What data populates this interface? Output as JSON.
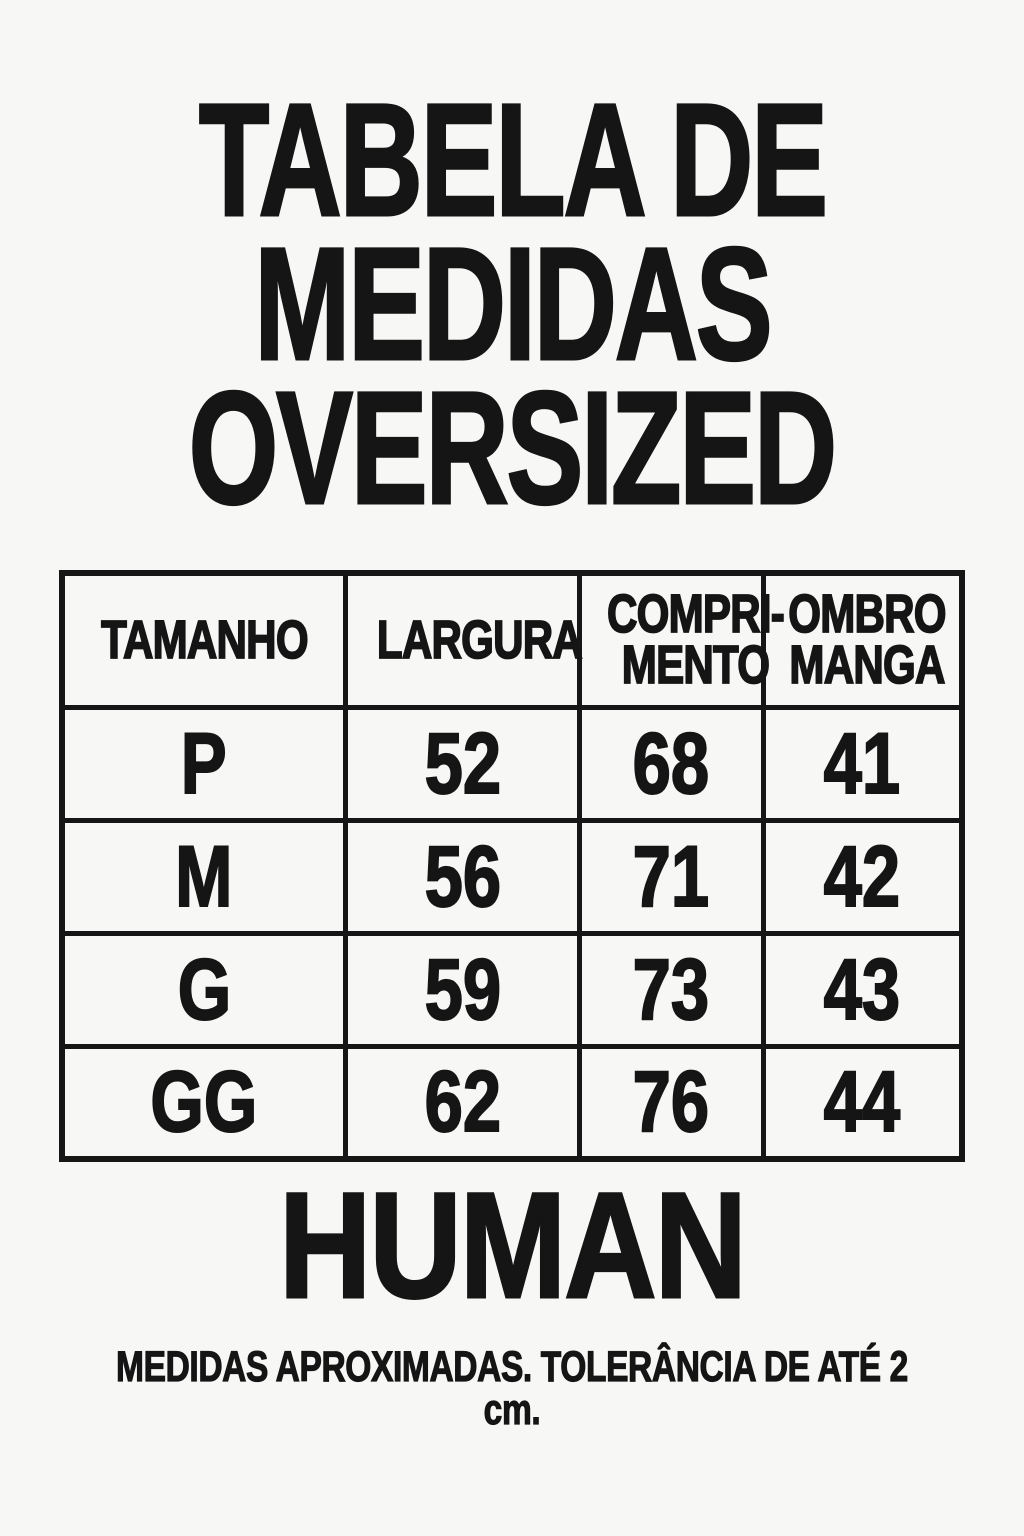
{
  "colors": {
    "background": "#f7f7f5",
    "ink": "#151515"
  },
  "title": {
    "line1": "TABELA DE",
    "line2": "MEDIDAS",
    "line3": "OVERSIZED"
  },
  "table": {
    "header": [
      "TAMANHO",
      "LARGURA",
      "COMPRI-\nMENTO",
      "OMBRO\nMANGA"
    ],
    "rows": [
      [
        "P",
        "52",
        "68",
        "41"
      ],
      [
        "M",
        "56",
        "71",
        "42"
      ],
      [
        "G",
        "59",
        "73",
        "43"
      ],
      [
        "GG",
        "62",
        "76",
        "44"
      ]
    ]
  },
  "brand": "HUMAN",
  "footnote": "MEDIDAS APROXIMADAS. TOLERÂNCIA DE ATÉ 2 cm."
}
